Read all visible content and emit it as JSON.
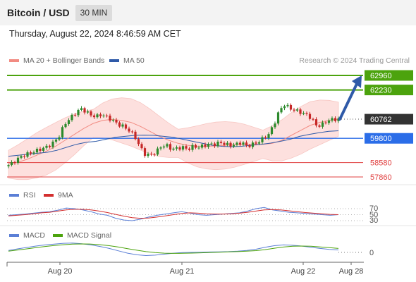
{
  "header": {
    "title": "Bitcoin / USD",
    "timeframe": "30 MIN"
  },
  "datetime": "Thursday, August 22, 2024 8:46:59 AM CET",
  "legend": {
    "ma20": "MA 20 + Bollinger Bands",
    "ma50": "MA 50",
    "credit": "Research © 2024 Trading Central",
    "rsi": "RSI",
    "rsi_ma": "9MA",
    "macd": "MACD",
    "macd_signal": "MACD Signal"
  },
  "colors": {
    "ma20": "#f28b82",
    "ma50": "#2f5aa8",
    "bull": "#2d8a2d",
    "bear": "#c62828",
    "resistance": "#4ca30d",
    "pivot": "#2b6de8",
    "support": "#e04040",
    "arrow": "#2f5aa8",
    "current": "#333333",
    "rsi": "#5b7fd6",
    "macd": "#5b7fd6",
    "macd_signal": "#4ca30d"
  },
  "chart_data": {
    "type": "candlestick",
    "levels": [
      {
        "value": 62960,
        "role": "resistance"
      },
      {
        "value": 62230,
        "role": "resistance"
      },
      {
        "value": 60762,
        "role": "current"
      },
      {
        "value": 59800,
        "role": "pivot"
      },
      {
        "value": 58580,
        "role": "support"
      },
      {
        "value": 57860,
        "role": "support"
      }
    ],
    "x_ticks": [
      "Aug 20",
      "Aug 21",
      "Aug 22",
      "Aug 28"
    ],
    "price_path": [
      58400,
      58500,
      58700,
      58900,
      59000,
      59100,
      59200,
      59300,
      59400,
      59600,
      59900,
      60500,
      60800,
      61050,
      61300,
      61150,
      60950,
      60900,
      61000,
      60850,
      60700,
      60500,
      60400,
      60200,
      59950,
      59400,
      59000,
      58950,
      59100,
      59400,
      59450,
      59250,
      59300,
      59350,
      59250,
      59400,
      59350,
      59450,
      59500,
      59500,
      59600,
      59500,
      59450,
      59500,
      59600,
      59400,
      59500,
      59600,
      59800,
      60000,
      60500,
      61200,
      61500,
      61300,
      61200,
      61100,
      61000,
      60800,
      60400,
      60500,
      60700,
      60750,
      60762
    ],
    "ma20_path": [
      58500,
      58600,
      58750,
      58950,
      59150,
      59400,
      59700,
      60000,
      60300,
      60550,
      60700,
      60750,
      60700,
      60600,
      60400,
      60150,
      59900,
      59700,
      59550,
      59450,
      59400,
      59400,
      59420,
      59450,
      59480,
      59500,
      59500,
      59500,
      59550,
      59700,
      59950,
      60200,
      60450,
      60600,
      60700,
      60760
    ],
    "ma50_path": [
      58900,
      58950,
      59000,
      59050,
      59100,
      59200,
      59350,
      59500,
      59600,
      59650,
      59750,
      59850,
      59900,
      59950,
      59960,
      59950,
      59900,
      59850,
      59750,
      59650,
      59550,
      59450,
      59400,
      59380,
      59400,
      59450,
      59500,
      59560,
      59650,
      59750,
      59900,
      60000,
      60080,
      60150,
      60180
    ],
    "forecast_target": 62960,
    "rsi": {
      "levels": [
        70,
        50,
        30
      ],
      "rsi_path": [
        48,
        50,
        52,
        55,
        58,
        60,
        65,
        72,
        70,
        66,
        60,
        52,
        48,
        38,
        32,
        30,
        35,
        42,
        48,
        52,
        56,
        60,
        55,
        50,
        48,
        50,
        52,
        54,
        56,
        62,
        70,
        74,
        66,
        62,
        58,
        56,
        54,
        52,
        50,
        48,
        50
      ],
      "ma_path": [
        46,
        48,
        50,
        53,
        56,
        58,
        62,
        66,
        68,
        68,
        66,
        62,
        57,
        51,
        45,
        40,
        38,
        39,
        42,
        46,
        50,
        54,
        56,
        55,
        53,
        52,
        52,
        53,
        55,
        58,
        62,
        66,
        67,
        66,
        63,
        60,
        57,
        55,
        53,
        51,
        50
      ]
    },
    "macd": {
      "level": 0,
      "macd_path": [
        100,
        180,
        250,
        320,
        380,
        420,
        460,
        470,
        440,
        380,
        300,
        200,
        80,
        -40,
        -120,
        -160,
        -140,
        -90,
        -40,
        -10,
        0,
        10,
        20,
        30,
        40,
        60,
        100,
        160,
        260,
        340,
        380,
        360,
        320,
        260,
        200,
        150,
        120
      ],
      "signal_path": [
        60,
        120,
        180,
        240,
        300,
        350,
        390,
        420,
        430,
        420,
        390,
        340,
        270,
        190,
        110,
        40,
        -10,
        -40,
        -50,
        -45,
        -35,
        -20,
        -5,
        10,
        25,
        40,
        60,
        90,
        140,
        210,
        270,
        310,
        320,
        310,
        280,
        240,
        200
      ]
    }
  }
}
